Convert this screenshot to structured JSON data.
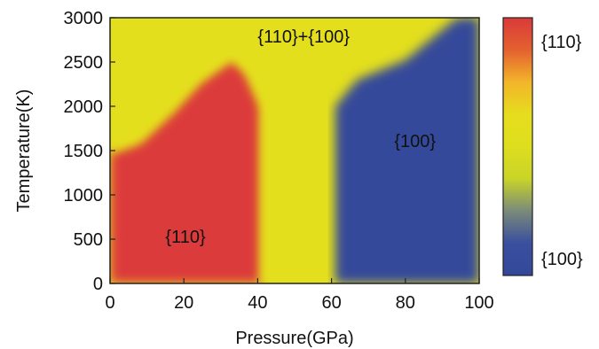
{
  "chart_data": {
    "type": "heatmap",
    "title": "",
    "xlabel": "Pressure(GPa)",
    "ylabel": "Temperature(K)",
    "xlim": [
      0,
      100
    ],
    "ylim": [
      0,
      3000
    ],
    "xticks": [
      "0",
      "20",
      "40",
      "60",
      "80",
      "100"
    ],
    "yticks": [
      "0",
      "500",
      "1000",
      "1500",
      "2000",
      "2500",
      "3000"
    ],
    "xtick_values": [
      0,
      20,
      40,
      60,
      80,
      100
    ],
    "ytick_values": [
      0,
      500,
      1000,
      1500,
      2000,
      2500,
      3000
    ],
    "grid": false,
    "colorbar": {
      "position": "right",
      "top_label": "{110}",
      "bottom_label": "{100}",
      "colors": [
        "#d93a3a",
        "#e4612f",
        "#f2b52a",
        "#e6dd1e",
        "#dede1e",
        "#c8d428",
        "#7a8a7a",
        "#3a4f9e",
        "#34489a"
      ]
    },
    "regions": [
      {
        "label": "{110}",
        "color": "#dc3b3a",
        "label_at": [
          15,
          460
        ],
        "boundary": [
          [
            0,
            0
          ],
          [
            0,
            1480
          ],
          [
            8,
            1600
          ],
          [
            17,
            1950
          ],
          [
            24,
            2270
          ],
          [
            33,
            2540
          ],
          [
            37,
            2380
          ],
          [
            41,
            2000
          ],
          [
            41,
            0
          ]
        ]
      },
      {
        "label": "{110}+{100}",
        "color": "#e4df1d",
        "label_at": [
          40,
          2720
        ],
        "boundary": [
          [
            0,
            1480
          ],
          [
            8,
            1600
          ],
          [
            17,
            1950
          ],
          [
            24,
            2270
          ],
          [
            33,
            2540
          ],
          [
            37,
            2380
          ],
          [
            41,
            2000
          ],
          [
            41,
            0
          ],
          [
            61,
            0
          ],
          [
            61,
            2000
          ],
          [
            67,
            2300
          ],
          [
            80,
            2520
          ],
          [
            94,
            3000
          ],
          [
            0,
            3000
          ]
        ]
      },
      {
        "label": "{100}",
        "color": "#34489a",
        "label_at": [
          77,
          1540
        ],
        "boundary": [
          [
            61,
            0
          ],
          [
            61,
            2000
          ],
          [
            67,
            2300
          ],
          [
            80,
            2520
          ],
          [
            94,
            3000
          ],
          [
            100,
            3000
          ],
          [
            100,
            0
          ]
        ]
      }
    ]
  }
}
